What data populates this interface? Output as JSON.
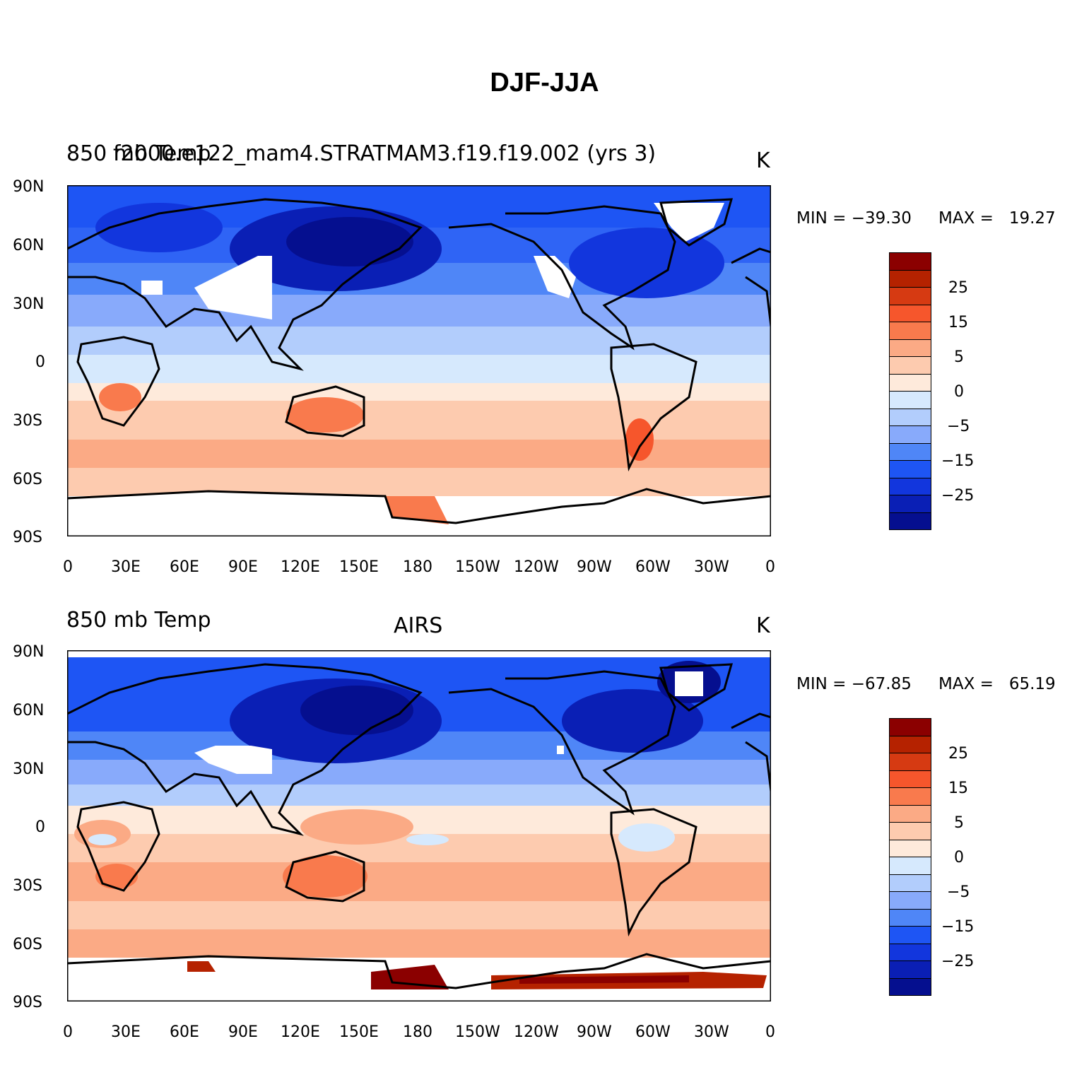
{
  "title": "DJF-JJA",
  "panels": [
    {
      "left_title": "850 mb Temp",
      "subtitle": "f2000.e122_mam4.STRATMAM3.f19.f19.002 (yrs 3)",
      "units": "K",
      "min_label": "MIN = −39.30",
      "max_label": "MAX =   19.27",
      "min": -39.3,
      "max": 19.27
    },
    {
      "left_title": "850 mb Temp",
      "subtitle": "AIRS",
      "units": "K",
      "min_label": "MIN = −67.85",
      "max_label": "MAX =   65.19",
      "min": -67.85,
      "max": 65.19
    }
  ],
  "lat_ticks": [
    "90N",
    "60N",
    "30N",
    "0",
    "30S",
    "60S",
    "90S"
  ],
  "lon_ticks": [
    "0",
    "30E",
    "60E",
    "90E",
    "120E",
    "150E",
    "180",
    "150W",
    "120W",
    "90W",
    "60W",
    "30W",
    "0"
  ],
  "colorbar": {
    "labels": [
      "25",
      "15",
      "5",
      "0",
      "−5",
      "−15",
      "−25"
    ],
    "colors": [
      "#8b0000",
      "#b52200",
      "#d63a12",
      "#f6562c",
      "#f97a4d",
      "#fbaa85",
      "#fdcbaf",
      "#feeadb",
      "#d6e9fd",
      "#b2cdfc",
      "#88aafb",
      "#4f86f7",
      "#1e55f4",
      "#1236dd",
      "#0a1fb5",
      "#050f8f"
    ]
  }
}
